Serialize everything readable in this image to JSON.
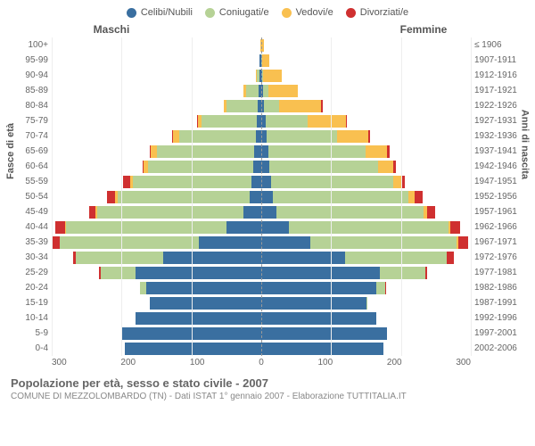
{
  "type": "population-pyramid",
  "legend": [
    {
      "label": "Celibi/Nubili",
      "color": "#3a6fa0"
    },
    {
      "label": "Coniugati/e",
      "color": "#b6d296"
    },
    {
      "label": "Vedovi/e",
      "color": "#f9c050"
    },
    {
      "label": "Divorziati/e",
      "color": "#cf3030"
    }
  ],
  "gender_left": "Maschi",
  "gender_right": "Femmine",
  "y_title_left": "Fasce di età",
  "y_title_right": "Anni di nascita",
  "age_labels": [
    "100+",
    "95-99",
    "90-94",
    "85-89",
    "80-84",
    "75-79",
    "70-74",
    "65-69",
    "60-64",
    "55-59",
    "50-54",
    "45-49",
    "40-44",
    "35-39",
    "30-34",
    "25-29",
    "20-24",
    "15-19",
    "10-14",
    "5-9",
    "0-4"
  ],
  "birth_labels": [
    "≤ 1906",
    "1907-1911",
    "1912-1916",
    "1917-1921",
    "1922-1926",
    "1927-1931",
    "1932-1936",
    "1937-1941",
    "1942-1946",
    "1947-1951",
    "1952-1956",
    "1957-1961",
    "1962-1966",
    "1967-1971",
    "1972-1976",
    "1977-1981",
    "1982-1986",
    "1987-1991",
    "1992-1996",
    "1997-2001",
    "2002-2006"
  ],
  "x_ticks_left": [
    "300",
    "200",
    "100",
    "0"
  ],
  "x_ticks_right": [
    "0",
    "100",
    "200",
    "300"
  ],
  "x_max": 300,
  "colors": {
    "single": "#3a6fa0",
    "married": "#b6d296",
    "widowed": "#f9c050",
    "divorced": "#cf3030",
    "grid": "#eeeeee",
    "centerline": "#999999",
    "bg": "#ffffff"
  },
  "rows": [
    {
      "m": [
        0,
        0,
        1,
        0
      ],
      "f": [
        0,
        0,
        4,
        0
      ]
    },
    {
      "m": [
        2,
        0,
        1,
        0
      ],
      "f": [
        0,
        1,
        11,
        0
      ]
    },
    {
      "m": [
        3,
        3,
        2,
        0
      ],
      "f": [
        1,
        2,
        26,
        0
      ]
    },
    {
      "m": [
        4,
        18,
        3,
        0
      ],
      "f": [
        2,
        8,
        42,
        0
      ]
    },
    {
      "m": [
        5,
        45,
        4,
        0
      ],
      "f": [
        4,
        22,
        60,
        2
      ]
    },
    {
      "m": [
        6,
        80,
        5,
        1
      ],
      "f": [
        6,
        60,
        55,
        2
      ]
    },
    {
      "m": [
        8,
        110,
        8,
        2
      ],
      "f": [
        8,
        100,
        45,
        3
      ]
    },
    {
      "m": [
        10,
        140,
        8,
        2
      ],
      "f": [
        10,
        140,
        30,
        4
      ]
    },
    {
      "m": [
        12,
        150,
        6,
        2
      ],
      "f": [
        12,
        155,
        22,
        4
      ]
    },
    {
      "m": [
        14,
        170,
        4,
        10
      ],
      "f": [
        14,
        175,
        12,
        5
      ]
    },
    {
      "m": [
        16,
        190,
        3,
        12
      ],
      "f": [
        16,
        195,
        8,
        12
      ]
    },
    {
      "m": [
        25,
        210,
        2,
        10
      ],
      "f": [
        22,
        210,
        5,
        12
      ]
    },
    {
      "m": [
        50,
        230,
        1,
        14
      ],
      "f": [
        40,
        228,
        3,
        14
      ]
    },
    {
      "m": [
        90,
        200,
        0,
        12
      ],
      "f": [
        70,
        210,
        2,
        14
      ]
    },
    {
      "m": [
        140,
        125,
        0,
        5
      ],
      "f": [
        120,
        145,
        1,
        10
      ]
    },
    {
      "m": [
        180,
        50,
        0,
        2
      ],
      "f": [
        170,
        65,
        0,
        3
      ]
    },
    {
      "m": [
        165,
        8,
        0,
        0
      ],
      "f": [
        165,
        12,
        0,
        1
      ]
    },
    {
      "m": [
        160,
        0,
        0,
        0
      ],
      "f": [
        150,
        1,
        0,
        0
      ]
    },
    {
      "m": [
        180,
        0,
        0,
        0
      ],
      "f": [
        165,
        0,
        0,
        0
      ]
    },
    {
      "m": [
        200,
        0,
        0,
        0
      ],
      "f": [
        180,
        0,
        0,
        0
      ]
    },
    {
      "m": [
        195,
        0,
        0,
        0
      ],
      "f": [
        175,
        0,
        0,
        0
      ]
    }
  ],
  "footer_title": "Popolazione per età, sesso e stato civile - 2007",
  "footer_sub": "COMUNE DI MEZZOLOMBARDO (TN) - Dati ISTAT 1° gennaio 2007 - Elaborazione TUTTITALIA.IT"
}
